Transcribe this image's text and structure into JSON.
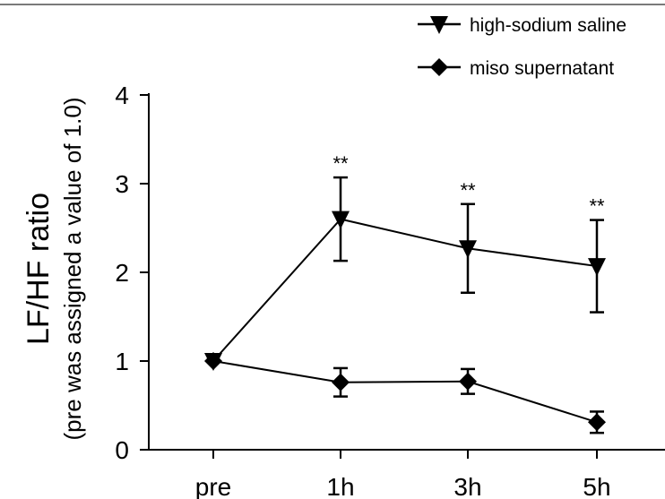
{
  "chart_data": {
    "type": "line",
    "categories": [
      "pre",
      "1h",
      "3h",
      "5h"
    ],
    "ylabel": "LF/HF ratio",
    "ylabel_sub": "(pre was assigned a value of 1.0)",
    "ylim": [
      0,
      4
    ],
    "yticks": [
      "0",
      "1",
      "2",
      "3",
      "4"
    ],
    "grid": false,
    "legend_position": "top-right",
    "series": [
      {
        "name": "high-sodium saline",
        "marker": "triangle-down",
        "values": [
          1.0,
          2.6,
          2.27,
          2.07
        ],
        "error": [
          0,
          0.47,
          0.5,
          0.52
        ],
        "significance": [
          "",
          "**",
          "**",
          "**"
        ]
      },
      {
        "name": "miso supernatant",
        "marker": "diamond",
        "values": [
          1.0,
          0.76,
          0.77,
          0.31
        ],
        "error": [
          0,
          0.16,
          0.14,
          0.12
        ],
        "significance": [
          "",
          "",
          "",
          ""
        ]
      }
    ]
  },
  "colors": {
    "line": "#000000",
    "axis": "#000000",
    "rule": "#7a7a7a"
  }
}
